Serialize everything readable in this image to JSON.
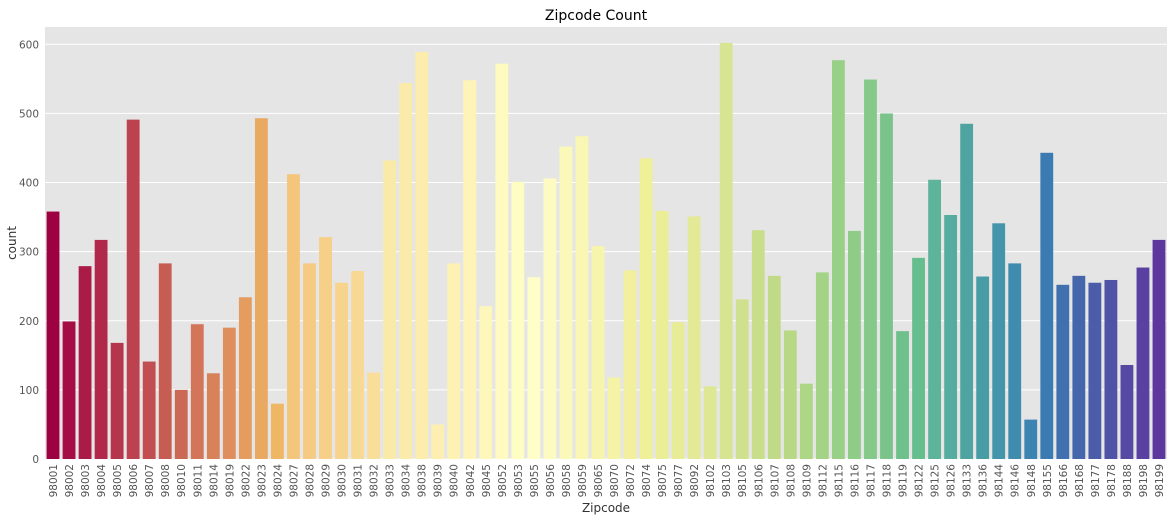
{
  "chart_data": {
    "type": "bar",
    "title": "Zipcode Count",
    "xlabel": "Zipcode",
    "ylabel": "count",
    "ylim": [
      0,
      625
    ],
    "yticks": [
      0,
      100,
      200,
      300,
      400,
      500,
      600
    ],
    "grid": true,
    "categories": [
      "98001",
      "98002",
      "98003",
      "98004",
      "98005",
      "98006",
      "98007",
      "98008",
      "98010",
      "98011",
      "98014",
      "98019",
      "98022",
      "98023",
      "98024",
      "98027",
      "98028",
      "98029",
      "98030",
      "98031",
      "98032",
      "98033",
      "98034",
      "98038",
      "98039",
      "98040",
      "98042",
      "98045",
      "98052",
      "98053",
      "98055",
      "98056",
      "98058",
      "98059",
      "98065",
      "98070",
      "98072",
      "98074",
      "98075",
      "98077",
      "98092",
      "98102",
      "98103",
      "98105",
      "98106",
      "98107",
      "98108",
      "98109",
      "98112",
      "98115",
      "98116",
      "98117",
      "98118",
      "98119",
      "98122",
      "98125",
      "98126",
      "98133",
      "98136",
      "98144",
      "98146",
      "98148",
      "98155",
      "98166",
      "98168",
      "98177",
      "98178",
      "98188",
      "98198",
      "98199"
    ],
    "values": [
      358,
      199,
      279,
      317,
      168,
      491,
      141,
      283,
      100,
      195,
      124,
      190,
      234,
      493,
      80,
      412,
      283,
      321,
      255,
      272,
      125,
      432,
      544,
      589,
      50,
      283,
      548,
      221,
      572,
      401,
      263,
      406,
      452,
      467,
      308,
      118,
      273,
      435,
      359,
      198,
      351,
      105,
      602,
      231,
      331,
      265,
      186,
      109,
      270,
      577,
      330,
      549,
      500,
      185,
      291,
      404,
      353,
      485,
      264,
      341,
      283,
      57,
      443,
      252,
      265,
      255,
      259,
      136,
      277,
      317
    ],
    "colors": [
      "#9e0142",
      "#a40e45",
      "#aa1b47",
      "#b0284a",
      "#b5354c",
      "#bb424e",
      "#c14f51",
      "#c75c53",
      "#cc6856",
      "#d27558",
      "#d8825a",
      "#de8f5d",
      "#e49c5f",
      "#e9a961",
      "#efb664",
      "#f4c67c",
      "#f5ca82",
      "#f6cf88",
      "#f7d48e",
      "#f8d994",
      "#f9de9a",
      "#faeaa7",
      "#fbebaa",
      "#fcedad",
      "#fdefb1",
      "#fef1b4",
      "#fef4b8",
      "#fef7bc",
      "#fefac0",
      "#fefdc4",
      "#fffec8",
      "#fdfbc1",
      "#fbf9ba",
      "#f9f7b3",
      "#f7f5ac",
      "#f5f3a5",
      "#f2f09e",
      "#eff098",
      "#ecee97",
      "#e8ec96",
      "#e3e996",
      "#dde794",
      "#d7e491",
      "#cfe18e",
      "#c8de8b",
      "#c0da88",
      "#b9d885",
      "#aed785",
      "#a3d486",
      "#99d087",
      "#8ecc88",
      "#84c88a",
      "#7ac48b",
      "#70c08c",
      "#66bd8d",
      "#5db49b",
      "#56ac9f",
      "#4fa4a2",
      "#489ca6",
      "#4494aa",
      "#408cae",
      "#3c84b1",
      "#3c7ab2",
      "#4170af",
      "#4666ac",
      "#4b5ca9",
      "#5052a6",
      "#5549a3",
      "#5a40a0",
      "#5e379e"
    ]
  }
}
